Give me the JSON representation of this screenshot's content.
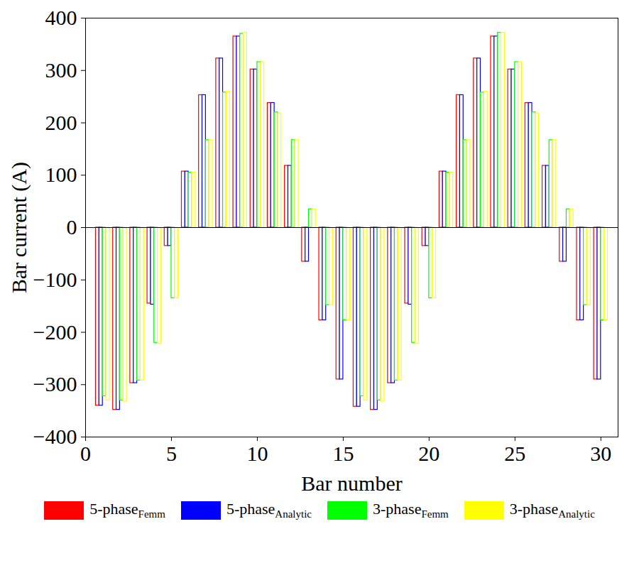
{
  "chart_data": {
    "type": "bar",
    "x_label": "Bar number",
    "y_label": "Bar current (A)",
    "x": [
      1,
      2,
      3,
      4,
      5,
      6,
      7,
      8,
      9,
      10,
      11,
      12,
      13,
      14,
      15,
      16,
      17,
      18,
      19,
      20,
      21,
      22,
      23,
      24,
      25,
      26,
      27,
      28,
      29,
      30
    ],
    "series": [
      {
        "name": "5-phaseFemm",
        "color": "#ff0000",
        "values": [
          -340,
          -348,
          -297,
          -145,
          -35,
          107,
          253,
          323,
          365,
          302,
          238,
          118,
          -65,
          -177,
          -290,
          -342,
          -348,
          -297,
          -145,
          -35,
          107,
          253,
          323,
          365,
          302,
          238,
          118,
          -65,
          -177,
          -290
        ]
      },
      {
        "name": "5-phaseAnalytic",
        "color": "#0000ff",
        "values": [
          -340,
          -348,
          -297,
          -147,
          -35,
          107,
          253,
          323,
          365,
          302,
          238,
          118,
          -65,
          -177,
          -290,
          -342,
          -348,
          -297,
          -147,
          -35,
          107,
          253,
          323,
          365,
          302,
          238,
          118,
          -65,
          -177,
          -290
        ]
      },
      {
        "name": "3-phaseFemm",
        "color": "#00ff00",
        "values": [
          -322,
          -330,
          -292,
          -220,
          -135,
          105,
          167,
          258,
          370,
          316,
          220,
          167,
          35,
          -148,
          -177,
          -322,
          -330,
          -292,
          -220,
          -135,
          105,
          167,
          258,
          372,
          316,
          220,
          167,
          35,
          -148,
          -177
        ]
      },
      {
        "name": "3-phaseAnalytic",
        "color": "#ffff00",
        "values": [
          -330,
          -332,
          -292,
          -222,
          -135,
          105,
          167,
          260,
          372,
          316,
          218,
          167,
          35,
          -148,
          -177,
          -330,
          -332,
          -292,
          -222,
          -135,
          105,
          167,
          260,
          372,
          316,
          218,
          167,
          35,
          -148,
          -177
        ]
      }
    ],
    "xlim": [
      0,
      31
    ],
    "xticks": [
      0,
      5,
      10,
      15,
      20,
      25,
      30
    ],
    "ylim": [
      -400,
      400
    ],
    "yticks": [
      -400,
      -300,
      -200,
      -100,
      0,
      100,
      200,
      300,
      400
    ],
    "grid": false,
    "legend": "bottom"
  }
}
